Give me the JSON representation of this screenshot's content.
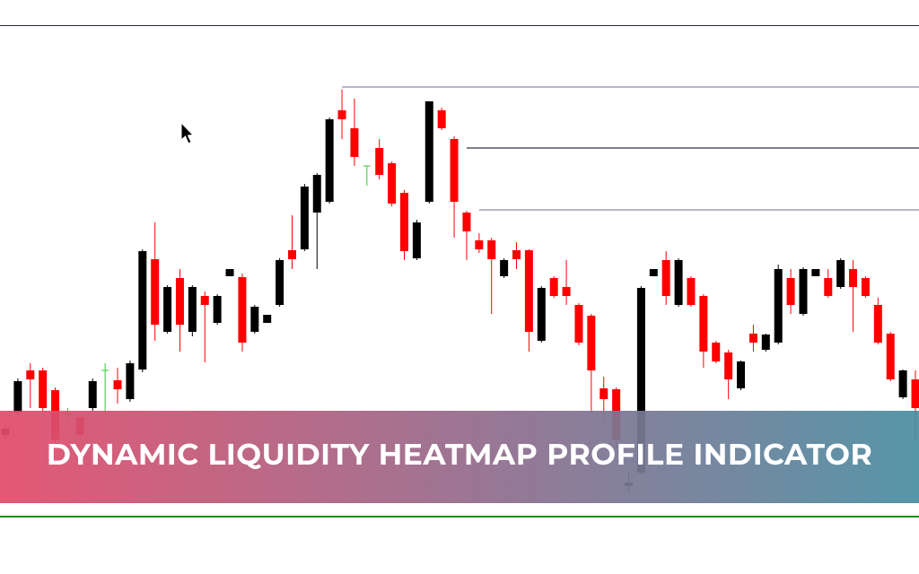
{
  "chart_data": {
    "type": "candlestick",
    "title": "DYNAMIC LIQUIDITY HEATMAP PROFILE INDICATOR",
    "ylim": [
      0,
      600
    ],
    "up_color": "#000000",
    "down_color": "#ff0000",
    "doji_color": "#33cc33",
    "open": [
      115,
      140,
      187,
      187,
      165,
      138,
      135,
      145,
      187,
      176,
      155,
      188,
      311,
      230,
      290,
      230,
      270,
      240,
      292,
      291,
      230,
      240,
      260,
      321,
      322,
      363,
      375,
      477,
      457,
      415,
      435,
      418,
      385,
      312,
      375,
      477,
      445,
      363,
      332,
      332,
      292,
      321,
      321,
      220,
      290,
      280,
      260,
      248,
      167,
      166,
      58,
      73,
      292,
      310,
      260,
      290,
      270,
      218,
      207,
      167,
      228,
      210,
      218,
      290,
      250,
      292,
      290,
      280,
      300,
      290,
      260,
      228,
      157,
      177
    ],
    "high": [
      125,
      178,
      195,
      190,
      168,
      145,
      138,
      178,
      195,
      190,
      198,
      322,
      352,
      282,
      300,
      282,
      275,
      272,
      300,
      295,
      260,
      249,
      312,
      360,
      395,
      407,
      469,
      500,
      490,
      415,
      445,
      420,
      388,
      355,
      487,
      480,
      448,
      365,
      340,
      335,
      312,
      330,
      322,
      281,
      292,
      310,
      262,
      250,
      180,
      168,
      75,
      281,
      300,
      320,
      312,
      292,
      272,
      220,
      210,
      198,
      238,
      228,
      305,
      300,
      302,
      300,
      300,
      312,
      310,
      292,
      268,
      230,
      188,
      187
    ],
    "low": [
      110,
      137,
      145,
      140,
      100,
      130,
      110,
      142,
      140,
      150,
      152,
      185,
      220,
      228,
      208,
      225,
      196,
      238,
      292,
      208,
      228,
      240,
      258,
      300,
      320,
      300,
      373,
      445,
      415,
      393,
      400,
      370,
      310,
      310,
      373,
      455,
      335,
      310,
      318,
      250,
      290,
      300,
      208,
      218,
      268,
      260,
      215,
      140,
      130,
      100,
      52,
      70,
      292,
      260,
      258,
      258,
      190,
      195,
      155,
      165,
      208,
      208,
      216,
      250,
      248,
      292,
      268,
      278,
      230,
      268,
      216,
      175,
      155,
      110
    ],
    "close": [
      122,
      175,
      177,
      145,
      110,
      138,
      115,
      175,
      187,
      166,
      195,
      320,
      238,
      280,
      238,
      280,
      260,
      270,
      300,
      218,
      258,
      249,
      310,
      311,
      392,
      405,
      467,
      467,
      425,
      415,
      405,
      373,
      320,
      352,
      487,
      457,
      375,
      342,
      322,
      311,
      310,
      311,
      230,
      279,
      270,
      270,
      218,
      187,
      155,
      110,
      62,
      279,
      300,
      270,
      310,
      260,
      208,
      197,
      177,
      197,
      218,
      227,
      300,
      260,
      300,
      300,
      270,
      310,
      280,
      270,
      218,
      177,
      187,
      145
    ],
    "levels": [
      {
        "value": 503,
        "color": "#8a8aaa",
        "from_candle": 27
      },
      {
        "value": 435,
        "color": "#333344",
        "from_candle": 37
      },
      {
        "value": 366,
        "color": "#8a8aaa",
        "from_candle": 38
      },
      {
        "value": 24,
        "color": "#1a8a1a",
        "from_candle": 0
      }
    ]
  }
}
